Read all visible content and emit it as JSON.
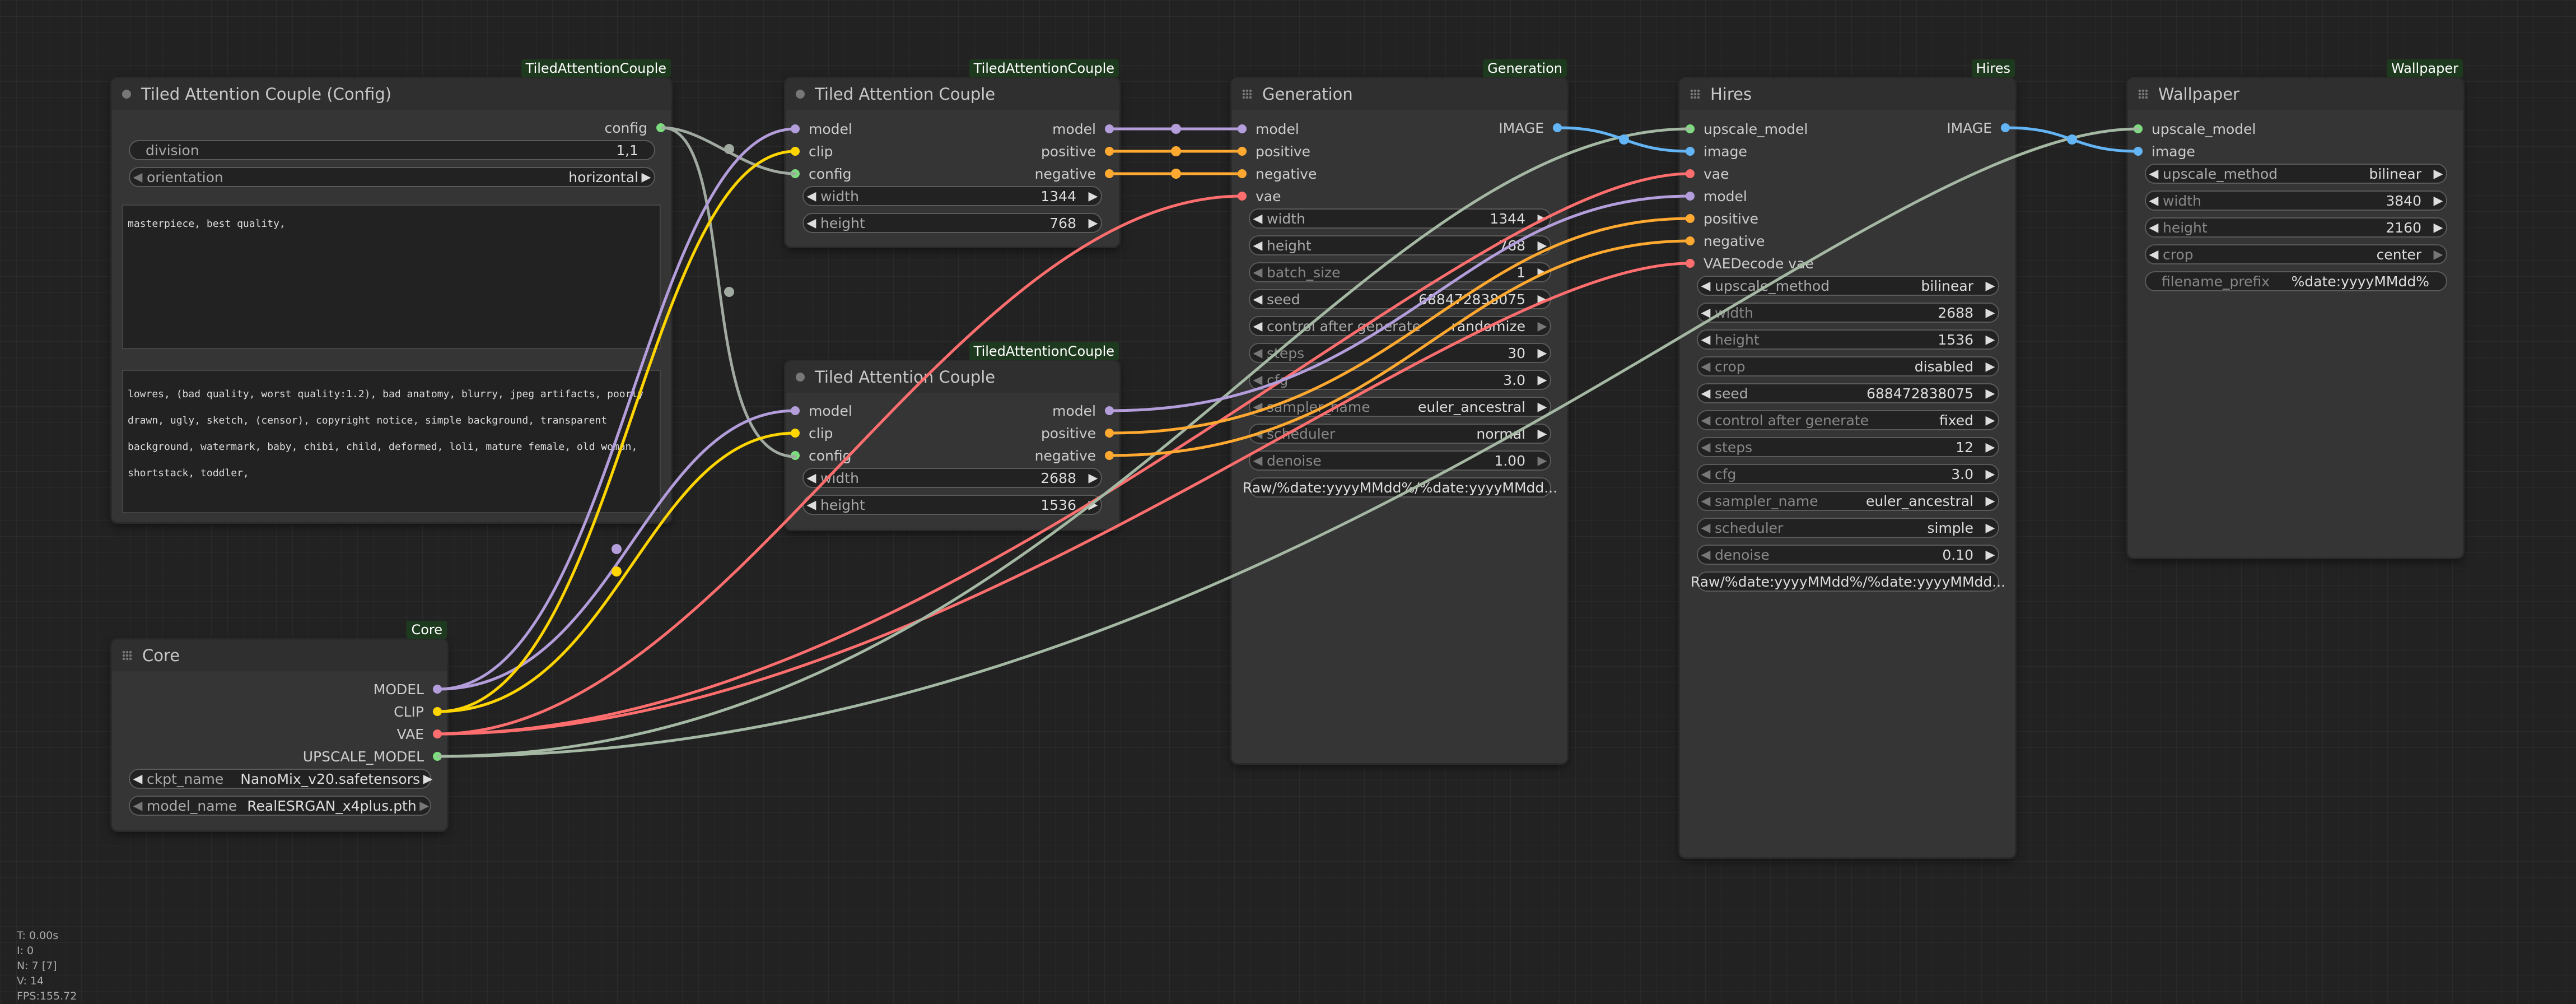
{
  "colors": {
    "model": "#b39ddb",
    "clip": "#ffd500",
    "config": "#7ddc7d",
    "positive": "#ffa931",
    "negative": "#ffa931",
    "vae": "#ff6e6e",
    "image": "#64b5f6",
    "upscale": "#a4b8a4",
    "link_config": "#a0aaa0"
  },
  "nodes": {
    "config": {
      "badge": "TiledAttentionCouple",
      "title": "Tiled Attention Couple (Config)",
      "output_config": "config",
      "division": {
        "label": "division",
        "value": "1,1"
      },
      "orientation": {
        "label": "orientation",
        "value": "horizontal"
      },
      "positive_prompt": "masterpiece, best quality,",
      "negative_prompt": "lowres, (bad quality, worst quality:1.2), bad anatomy, blurry, jpeg artifacts, poorly drawn, ugly, sketch, (censor), copyright notice, simple background, transparent background, watermark, baby, chibi, child, deformed, loli, mature female, old woman, shortstack, toddler,"
    },
    "tac1": {
      "badge": "TiledAttentionCouple",
      "title": "Tiled Attention Couple",
      "in_model": "model",
      "in_clip": "clip",
      "in_config": "config",
      "out_model": "model",
      "out_positive": "positive",
      "out_negative": "negative",
      "width": {
        "label": "width",
        "value": "1344"
      },
      "height": {
        "label": "height",
        "value": "768"
      }
    },
    "tac2": {
      "badge": "TiledAttentionCouple",
      "title": "Tiled Attention Couple",
      "in_model": "model",
      "in_clip": "clip",
      "in_config": "config",
      "out_model": "model",
      "out_positive": "positive",
      "out_negative": "negative",
      "width": {
        "label": "width",
        "value": "2688"
      },
      "height": {
        "label": "height",
        "value": "1536"
      }
    },
    "core": {
      "badge": "Core",
      "title": "Core",
      "out_model": "MODEL",
      "out_clip": "CLIP",
      "out_vae": "VAE",
      "out_upscale": "UPSCALE_MODEL",
      "ckpt_name": {
        "label": "ckpt_name",
        "value": "NanoMix_v20.safetensors"
      },
      "model_name": {
        "label": "model_name",
        "value": "RealESRGAN_x4plus.pth"
      }
    },
    "generation": {
      "badge": "Generation",
      "title": "Generation",
      "in_model": "model",
      "in_positive": "positive",
      "in_negative": "negative",
      "in_vae": "vae",
      "out_image": "IMAGE",
      "widgets": [
        {
          "label": "width",
          "value": "1344",
          "dim": false
        },
        {
          "label": "height",
          "value": "768",
          "dim": false
        },
        {
          "label": "batch_size",
          "value": "1",
          "dim": true
        },
        {
          "label": "seed",
          "value": "688472838075",
          "dim": false
        },
        {
          "label": "control after generate",
          "value": "randomize",
          "dim": false
        },
        {
          "label": "steps",
          "value": "30",
          "dim": true
        },
        {
          "label": "cfg",
          "value": "3.0",
          "dim": true
        },
        {
          "label": "sampler_name",
          "value": "euler_ancestral",
          "dim": true
        },
        {
          "label": "scheduler",
          "value": "normal",
          "dim": true
        },
        {
          "label": "denoise",
          "value": "1.00",
          "dim": true
        }
      ],
      "filename": "Raw/%date:yyyyMMdd%/%date:yyyyMMdd..."
    },
    "hires": {
      "badge": "Hires",
      "title": "Hires",
      "inputs": [
        "upscale_model",
        "image",
        "vae",
        "model",
        "positive",
        "negative",
        "VAEDecode vae"
      ],
      "out_image": "IMAGE",
      "widgets": [
        {
          "label": "upscale_method",
          "value": "bilinear",
          "dim": false
        },
        {
          "label": "width",
          "value": "2688",
          "dim": true
        },
        {
          "label": "height",
          "value": "1536",
          "dim": true
        },
        {
          "label": "crop",
          "value": "disabled",
          "dim": true
        },
        {
          "label": "seed",
          "value": "688472838075",
          "dim": false
        },
        {
          "label": "control after generate",
          "value": "fixed",
          "dim": true
        },
        {
          "label": "steps",
          "value": "12",
          "dim": true
        },
        {
          "label": "cfg",
          "value": "3.0",
          "dim": true
        },
        {
          "label": "sampler_name",
          "value": "euler_ancestral",
          "dim": true
        },
        {
          "label": "scheduler",
          "value": "simple",
          "dim": true
        },
        {
          "label": "denoise",
          "value": "0.10",
          "dim": true
        }
      ],
      "filename": "Raw/%date:yyyyMMdd%/%date:yyyyMMdd..."
    },
    "wallpaper": {
      "badge": "Wallpaper",
      "title": "Wallpaper",
      "inputs": [
        "upscale_model",
        "image"
      ],
      "widgets": [
        {
          "label": "upscale_method",
          "value": "bilinear",
          "dim": false
        },
        {
          "label": "width",
          "value": "3840",
          "dim": true
        },
        {
          "label": "height",
          "value": "2160",
          "dim": true
        },
        {
          "label": "crop",
          "value": "center",
          "dim": true
        }
      ],
      "filename": {
        "label": "filename_prefix",
        "value": "%date:yyyyMMdd%"
      }
    }
  },
  "stats": [
    "T: 0.00s",
    "I: 0",
    "N: 7 [7]",
    "V: 14",
    "FPS:155.72"
  ]
}
